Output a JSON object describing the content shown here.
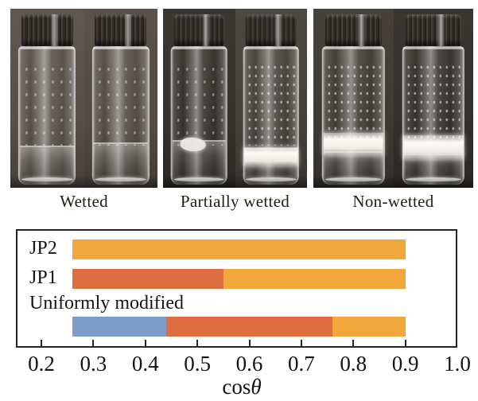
{
  "figure": {
    "description": "Wettability of powders in vials with stacked bar chart of cos theta ranges",
    "panels": [
      {
        "id": "wetted",
        "label": "Wetted",
        "color": "#F1A73B"
      },
      {
        "id": "partially-wetted",
        "label": "Partially wetted",
        "color": "#DD6E40"
      },
      {
        "id": "non-wetted",
        "label": "Non-wetted",
        "color": "#7E9CC8"
      }
    ]
  },
  "chart_data": {
    "type": "bar",
    "orientation": "horizontal",
    "stacked": true,
    "title": "",
    "xlabel": "cosθ",
    "xlabel_cos": "cos",
    "xlabel_theta": "θ",
    "xlim": [
      0.2,
      1.0
    ],
    "xticks": [
      "0.2",
      "0.3",
      "0.4",
      "0.5",
      "0.6",
      "0.7",
      "0.8",
      "0.9",
      "1.0"
    ],
    "grid": false,
    "legend_position": "none",
    "categories": [
      "JP2",
      "JP1",
      "Uniformly modified"
    ],
    "series_colors": {
      "Wetted": "#F1A73B",
      "Partially wetted": "#DD6E40",
      "Non-wetted": "#7E9CC8"
    },
    "bars": [
      {
        "category": "JP2",
        "segments": [
          {
            "state": "Wetted",
            "from": 0.26,
            "to": 0.9
          }
        ]
      },
      {
        "category": "JP1",
        "segments": [
          {
            "state": "Partially wetted",
            "from": 0.26,
            "to": 0.55
          },
          {
            "state": "Wetted",
            "from": 0.55,
            "to": 0.9
          }
        ]
      },
      {
        "category": "Uniformly modified",
        "segments": [
          {
            "state": "Non-wetted",
            "from": 0.26,
            "to": 0.44
          },
          {
            "state": "Partially wetted",
            "from": 0.44,
            "to": 0.76
          },
          {
            "state": "Wetted",
            "from": 0.76,
            "to": 0.9
          }
        ]
      }
    ]
  }
}
